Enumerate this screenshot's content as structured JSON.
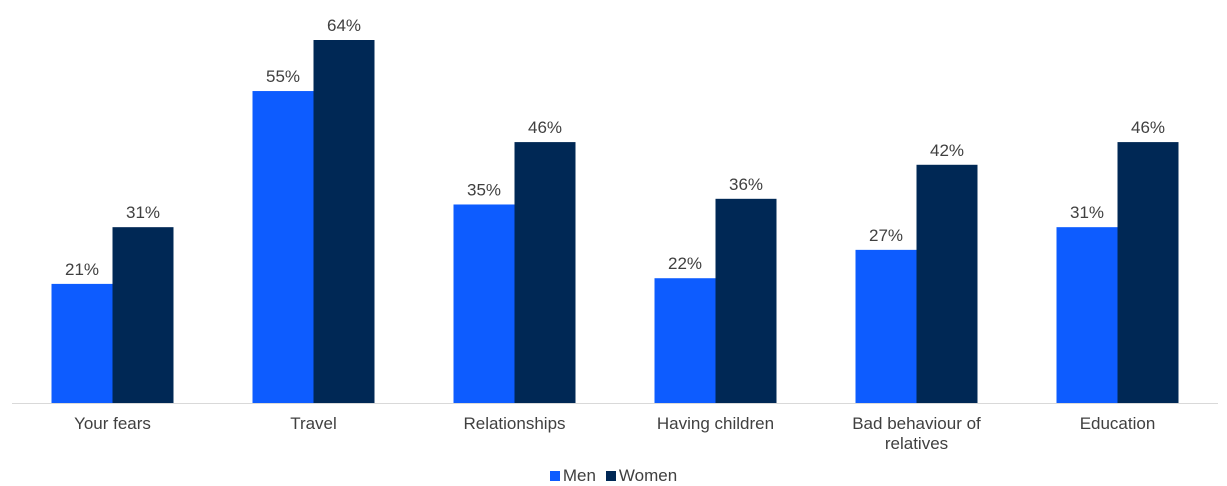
{
  "chart_data": {
    "type": "bar",
    "categories": [
      [
        "Your fears"
      ],
      [
        "Travel"
      ],
      [
        "Relationships"
      ],
      [
        "Having children"
      ],
      [
        "Bad behaviour of",
        "relatives"
      ],
      [
        "Education"
      ]
    ],
    "series": [
      {
        "name": "Men",
        "color": "#0d5cff",
        "values": [
          21,
          55,
          35,
          22,
          27,
          31
        ],
        "labels": [
          "21%",
          "55%",
          "35%",
          "22%",
          "27%",
          "31%"
        ]
      },
      {
        "name": "Women",
        "color": "#002855",
        "values": [
          31,
          64,
          46,
          36,
          42,
          46
        ],
        "labels": [
          "31%",
          "64%",
          "46%",
          "36%",
          "42%",
          "46%"
        ]
      }
    ],
    "ylim": [
      0,
      64
    ],
    "grid": false,
    "legend_position": "bottom-center",
    "baseline_color": "#d9d9d9"
  }
}
